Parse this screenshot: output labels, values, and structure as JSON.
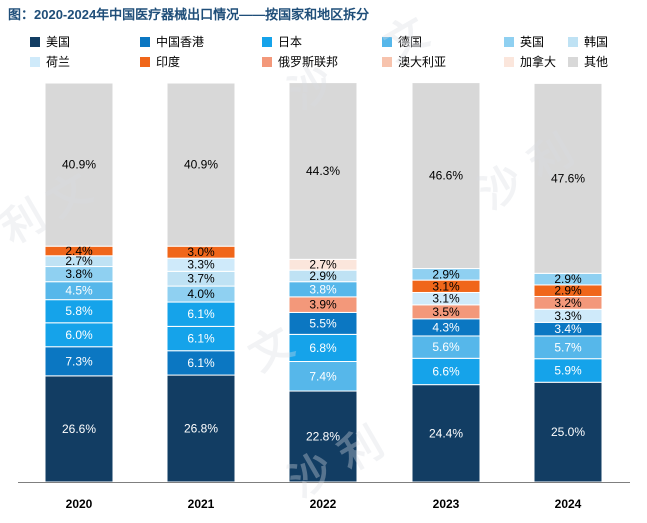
{
  "title": "图：2020-2024年中国医疗器械出口情况——按国家和地区拆分",
  "colors": {
    "美国": "#123d63",
    "中国香港": "#0b77c2",
    "日本": "#15a3ea",
    "德国": "#56b7ea",
    "英国": "#8fd0f1",
    "韩国": "#bfe2f4",
    "荷兰": "#cfeafa",
    "印度": "#f0661a",
    "俄罗斯联邦": "#f3987a",
    "澳大利亚": "#f7c3ad",
    "加拿大": "#fbe6dc",
    "其他": "#d8d8d8"
  },
  "chart_data": {
    "type": "stacked-bar",
    "title": "图：2020-2024年中国医疗器械出口情况——按国家和地区拆分",
    "unit": "%",
    "ylim": [
      0,
      100
    ],
    "categories": [
      "2020",
      "2021",
      "2022",
      "2023",
      "2024"
    ],
    "legend": [
      "美国",
      "中国香港",
      "日本",
      "德国",
      "英国",
      "韩国",
      "荷兰",
      "印度",
      "俄罗斯联邦",
      "澳大利亚",
      "加拿大",
      "其他"
    ],
    "bars": [
      {
        "year": "2020",
        "segments": [
          {
            "name": "美国",
            "value": 26.6,
            "label": "26.6%"
          },
          {
            "name": "中国香港",
            "value": 7.3,
            "label": "7.3%"
          },
          {
            "name": "日本",
            "value": 6.0,
            "label": "6.0%"
          },
          {
            "name": "日本",
            "value": 5.8,
            "label": "5.8%"
          },
          {
            "name": "德国",
            "value": 4.5,
            "label": "4.5%"
          },
          {
            "name": "英国",
            "value": 3.8,
            "label": "3.8%"
          },
          {
            "name": "韩国",
            "value": 2.7,
            "label": "2.7%"
          },
          {
            "name": "印度",
            "value": 2.4,
            "label": "2.4%"
          },
          {
            "name": "其他",
            "value": 40.9,
            "label": "40.9%"
          }
        ]
      },
      {
        "year": "2021",
        "segments": [
          {
            "name": "美国",
            "value": 26.8,
            "label": "26.8%"
          },
          {
            "name": "中国香港",
            "value": 6.1,
            "label": "6.1%"
          },
          {
            "name": "日本",
            "value": 6.1,
            "label": "6.1%"
          },
          {
            "name": "日本",
            "value": 6.1,
            "label": "6.1%"
          },
          {
            "name": "英国",
            "value": 4.0,
            "label": "4.0%"
          },
          {
            "name": "韩国",
            "value": 3.7,
            "label": "3.7%"
          },
          {
            "name": "荷兰",
            "value": 3.3,
            "label": "3.3%"
          },
          {
            "name": "印度",
            "value": 3.0,
            "label": "3.0%"
          },
          {
            "name": "其他",
            "value": 40.9,
            "label": "40.9%"
          }
        ]
      },
      {
        "year": "2022",
        "segments": [
          {
            "name": "美国",
            "value": 22.8,
            "label": "22.8%"
          },
          {
            "name": "德国",
            "value": 7.4,
            "label": "7.4%"
          },
          {
            "name": "日本",
            "value": 6.8,
            "label": "6.8%"
          },
          {
            "name": "中国香港",
            "value": 5.5,
            "label": "5.5%"
          },
          {
            "name": "俄罗斯联邦",
            "value": 3.9,
            "label": "3.9%"
          },
          {
            "name": "德国",
            "value": 3.8,
            "label": "3.8%"
          },
          {
            "name": "韩国",
            "value": 2.9,
            "label": "2.9%"
          },
          {
            "name": "加拿大",
            "value": 2.7,
            "label": "2.7%"
          },
          {
            "name": "其他",
            "value": 44.3,
            "label": "44.3%"
          }
        ]
      },
      {
        "year": "2023",
        "segments": [
          {
            "name": "美国",
            "value": 24.4,
            "label": "24.4%"
          },
          {
            "name": "日本",
            "value": 6.6,
            "label": "6.6%"
          },
          {
            "name": "德国",
            "value": 5.6,
            "label": "5.6%"
          },
          {
            "name": "中国香港",
            "value": 4.3,
            "label": "4.3%"
          },
          {
            "name": "俄罗斯联邦",
            "value": 3.5,
            "label": "3.5%"
          },
          {
            "name": "荷兰",
            "value": 3.1,
            "label": "3.1%"
          },
          {
            "name": "印度",
            "value": 3.1,
            "label": "3.1%"
          },
          {
            "name": "英国",
            "value": 2.9,
            "label": "2.9%"
          },
          {
            "name": "其他",
            "value": 46.6,
            "label": "46.6%"
          }
        ]
      },
      {
        "year": "2024",
        "segments": [
          {
            "name": "美国",
            "value": 25.0,
            "label": "25.0%"
          },
          {
            "name": "日本",
            "value": 5.9,
            "label": "5.9%"
          },
          {
            "name": "德国",
            "value": 5.7,
            "label": "5.7%"
          },
          {
            "name": "中国香港",
            "value": 3.4,
            "label": "3.4%"
          },
          {
            "name": "荷兰",
            "value": 3.3,
            "label": "3.3%"
          },
          {
            "name": "俄罗斯联邦",
            "value": 3.2,
            "label": "3.2%"
          },
          {
            "name": "印度",
            "value": 2.9,
            "label": "2.9%"
          },
          {
            "name": "英国",
            "value": 2.9,
            "label": "2.9%"
          },
          {
            "name": "其他",
            "value": 47.6,
            "label": "47.6%"
          }
        ]
      }
    ]
  }
}
